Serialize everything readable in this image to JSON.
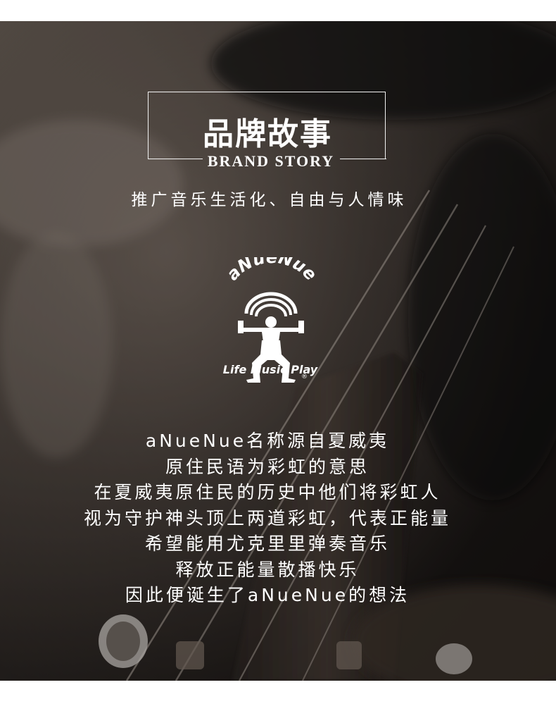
{
  "header": {
    "title_cn": "品牌故事",
    "title_en": "BRAND STORY"
  },
  "subtitle": "推广音乐生活化、自由与人情味",
  "logo": {
    "brand": "aNueNue",
    "tagline": "Life Music Play",
    "registered": "®",
    "icon": "figure-with-rainbow-icon"
  },
  "story": {
    "lines": [
      "aNueNue名称源自夏威夷",
      "原住民语为彩虹的意思",
      "在夏威夷原住民的历史中他们将彩虹人",
      "视为守护神头顶上两道彩虹，代表正能量",
      "希望能用尤克里里弹奏音乐",
      "释放正能量散播快乐",
      "因此便诞生了aNueNue的想法"
    ]
  },
  "colors": {
    "text": "#ffffff",
    "background_dark": "#1a1614",
    "page": "#ffffff"
  }
}
